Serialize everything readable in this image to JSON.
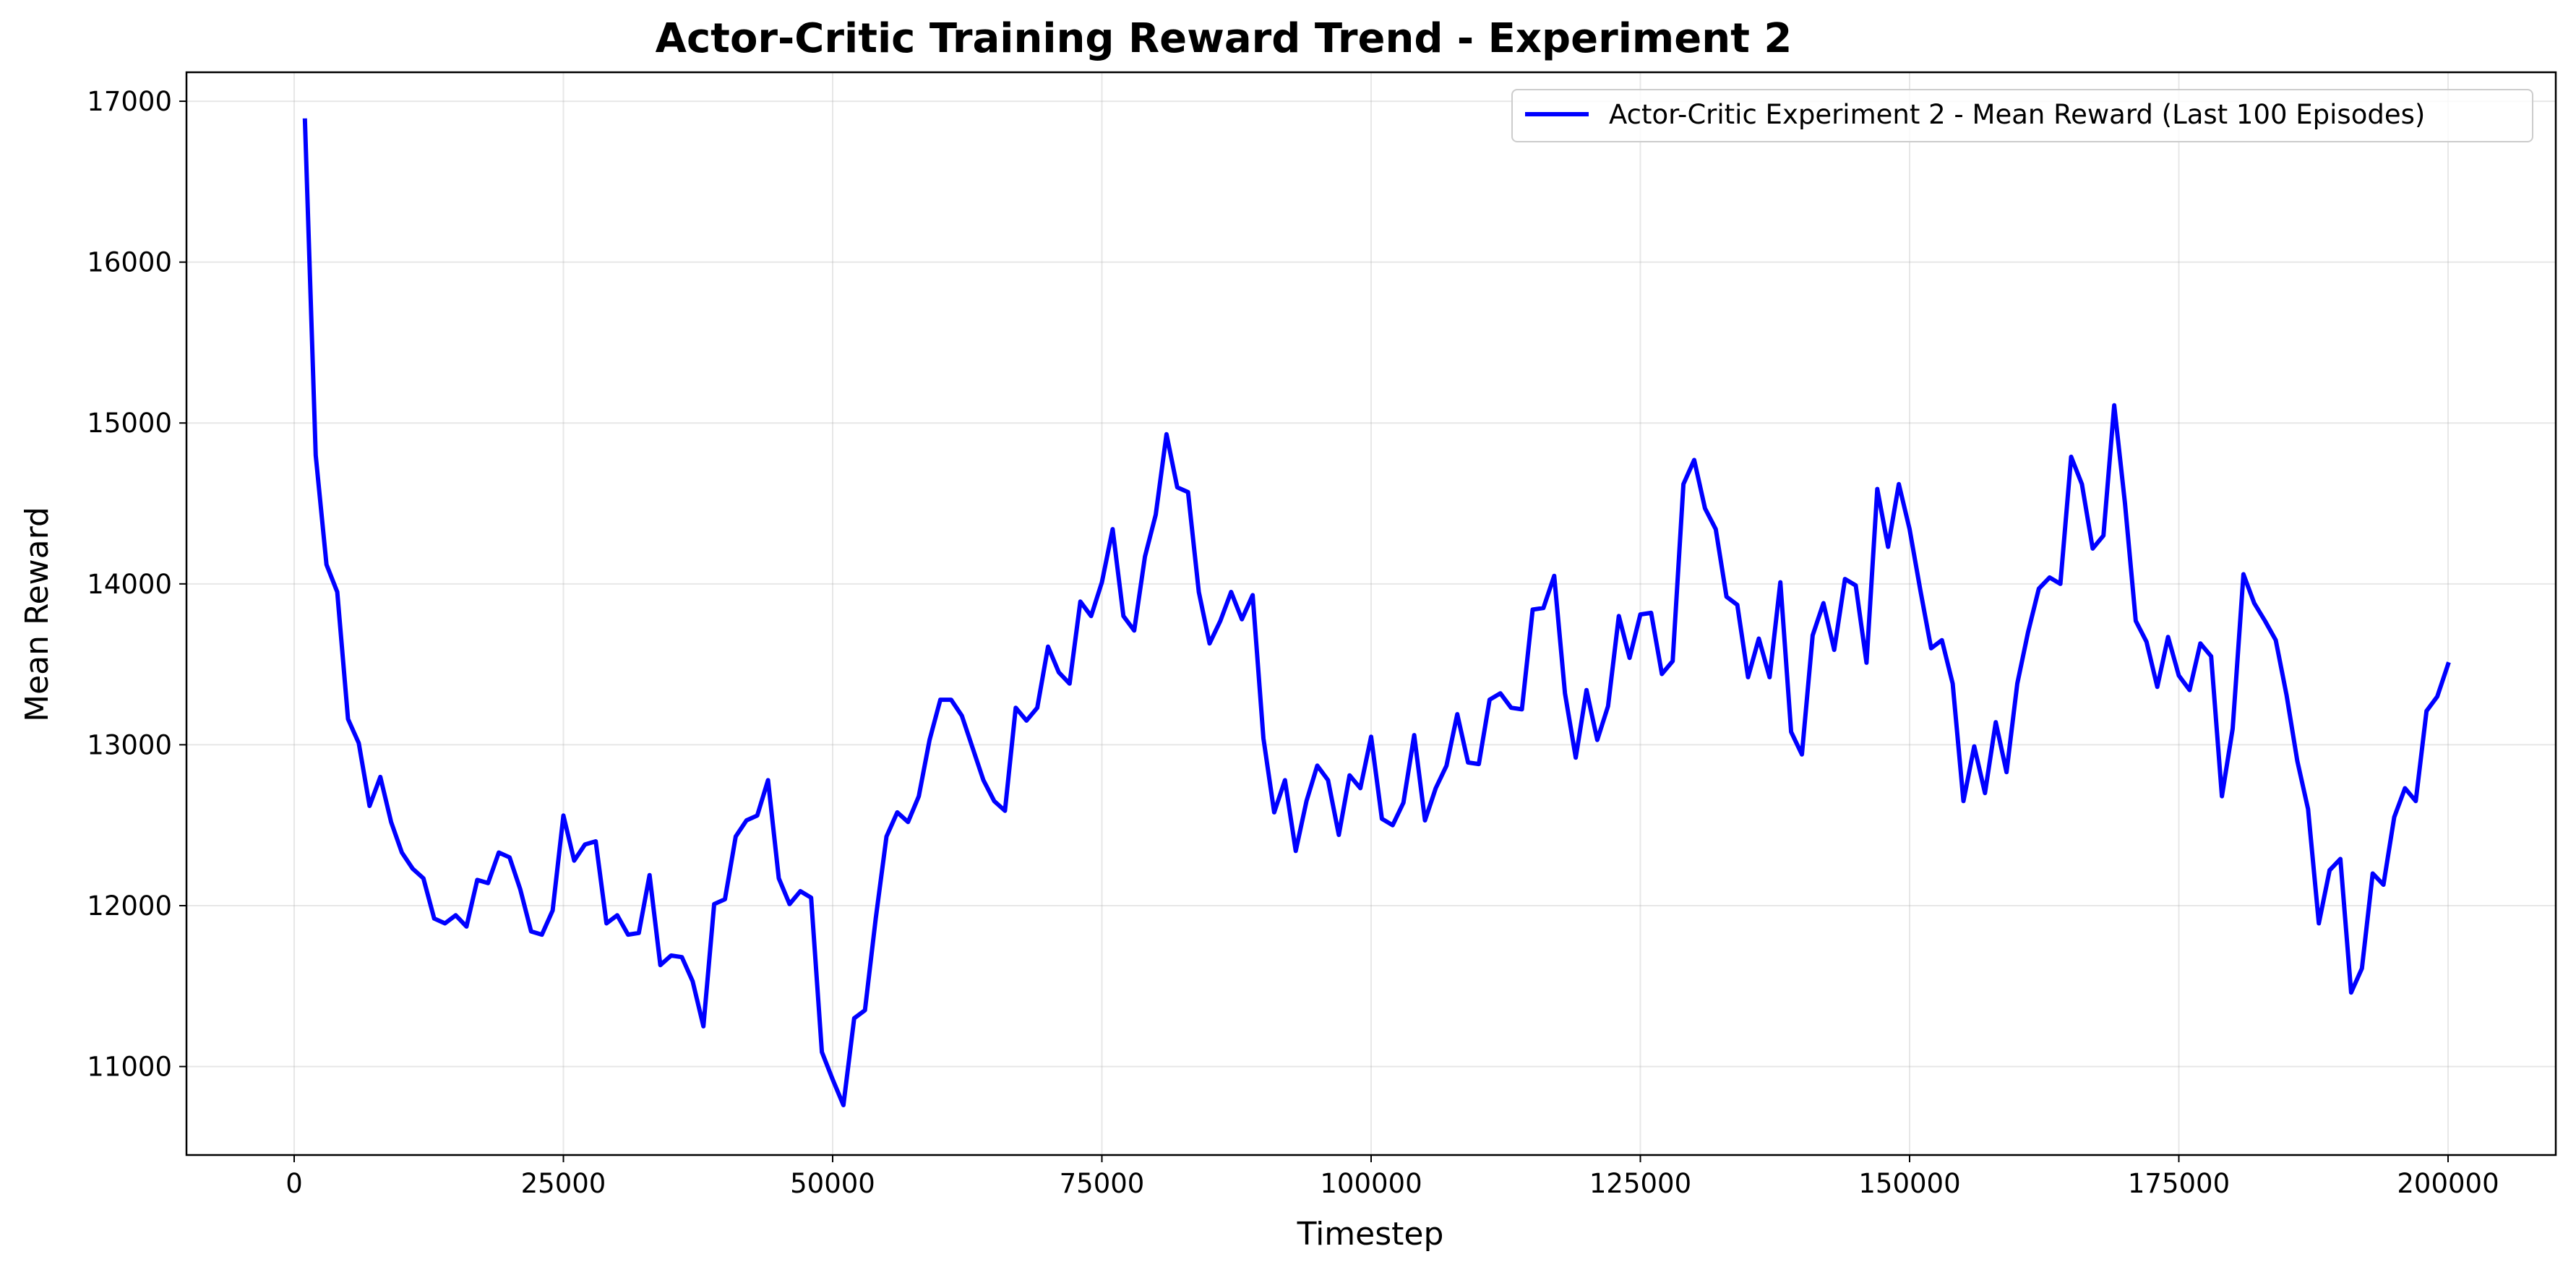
{
  "chart_data": {
    "type": "line",
    "title": "Actor-Critic Training Reward Trend - Experiment 2",
    "xlabel": "Timestep",
    "ylabel": "Mean Reward",
    "xlim": [
      -10000,
      210000
    ],
    "ylim": [
      10450,
      17180
    ],
    "xticks": [
      0,
      25000,
      50000,
      75000,
      100000,
      125000,
      150000,
      175000,
      200000
    ],
    "xtick_labels": [
      "0",
      "25000",
      "50000",
      "75000",
      "100000",
      "125000",
      "150000",
      "175000",
      "200000"
    ],
    "yticks": [
      11000,
      12000,
      13000,
      14000,
      15000,
      16000,
      17000
    ],
    "ytick_labels": [
      "11000",
      "12000",
      "13000",
      "14000",
      "15000",
      "16000",
      "17000"
    ],
    "grid": true,
    "legend_position": "top-right",
    "series": [
      {
        "name": "Actor-Critic Experiment 2 - Mean Reward (Last 100 Episodes)",
        "color": "#0000ff",
        "x": [
          1000,
          2000,
          3000,
          4000,
          5000,
          6000,
          7000,
          8000,
          9000,
          10000,
          11000,
          12000,
          13000,
          14000,
          15000,
          16000,
          17000,
          18000,
          19000,
          20000,
          21000,
          22000,
          23000,
          24000,
          25000,
          26000,
          27000,
          28000,
          29000,
          30000,
          31000,
          32000,
          33000,
          34000,
          35000,
          36000,
          37000,
          38000,
          39000,
          40000,
          41000,
          42000,
          43000,
          44000,
          45000,
          46000,
          47000,
          48000,
          49000,
          50000,
          51000,
          52000,
          53000,
          54000,
          55000,
          56000,
          57000,
          58000,
          59000,
          60000,
          61000,
          62000,
          63000,
          64000,
          65000,
          66000,
          67000,
          68000,
          69000,
          70000,
          71000,
          72000,
          73000,
          74000,
          75000,
          76000,
          77000,
          78000,
          79000,
          80000,
          81000,
          82000,
          83000,
          84000,
          85000,
          86000,
          87000,
          88000,
          89000,
          90000,
          91000,
          92000,
          93000,
          94000,
          95000,
          96000,
          97000,
          98000,
          99000,
          100000,
          101000,
          102000,
          103000,
          104000,
          105000,
          106000,
          107000,
          108000,
          109000,
          110000,
          111000,
          112000,
          113000,
          114000,
          115000,
          116000,
          117000,
          118000,
          119000,
          120000,
          121000,
          122000,
          123000,
          124000,
          125000,
          126000,
          127000,
          128000,
          129000,
          130000,
          131000,
          132000,
          133000,
          134000,
          135000,
          136000,
          137000,
          138000,
          139000,
          140000,
          141000,
          142000,
          143000,
          144000,
          145000,
          146000,
          147000,
          148000,
          149000,
          150000,
          151000,
          152000,
          153000,
          154000,
          155000,
          156000,
          157000,
          158000,
          159000,
          160000,
          161000,
          162000,
          163000,
          164000,
          165000,
          166000,
          167000,
          168000,
          169000,
          170000,
          171000,
          172000,
          173000,
          174000,
          175000,
          176000,
          177000,
          178000,
          179000,
          180000,
          181000,
          182000,
          183000,
          184000,
          185000,
          186000,
          187000,
          188000,
          189000,
          190000,
          191000,
          192000,
          193000,
          194000,
          195000,
          196000,
          197000,
          198000,
          199000,
          200000
        ],
        "y": [
          16880,
          14800,
          14120,
          13950,
          13160,
          13010,
          12620,
          12800,
          12520,
          12330,
          12230,
          12170,
          11920,
          11890,
          11940,
          11870,
          12160,
          12140,
          12330,
          12300,
          12100,
          11840,
          11820,
          11970,
          12560,
          12280,
          12380,
          12400,
          11890,
          11940,
          11820,
          11830,
          12190,
          11630,
          11690,
          11680,
          11530,
          11250,
          12010,
          12040,
          12430,
          12530,
          12560,
          12780,
          12170,
          12010,
          12090,
          12050,
          11090,
          10920,
          10760,
          11300,
          11350,
          11920,
          12430,
          12580,
          12520,
          12680,
          13030,
          13280,
          13280,
          13180,
          12980,
          12780,
          12650,
          12590,
          13230,
          13150,
          13230,
          13610,
          13450,
          13380,
          13890,
          13800,
          14010,
          14340,
          13800,
          13710,
          14170,
          14430,
          14930,
          14600,
          14570,
          13950,
          13630,
          13770,
          13950,
          13780,
          13930,
          13040,
          12580,
          12780,
          12340,
          12650,
          12870,
          12780,
          12440,
          12810,
          12730,
          13050,
          12540,
          12500,
          12640,
          13060,
          12530,
          12730,
          12870,
          13190,
          12890,
          12880,
          13280,
          13320,
          13230,
          13220,
          13840,
          13850,
          14050,
          13320,
          12920,
          13340,
          13030,
          13240,
          13800,
          13540,
          13810,
          13820,
          13440,
          13520,
          14620,
          14770,
          14470,
          14340,
          13920,
          13870,
          13420,
          13660,
          13420,
          14010,
          13080,
          12940,
          13680,
          13880,
          13590,
          14030,
          13990,
          13510,
          14590,
          14230,
          14620,
          14340,
          13960,
          13600,
          13650,
          13380,
          12650,
          12990,
          12700,
          13140,
          12830,
          13380,
          13700,
          13970,
          14040,
          14000,
          14790,
          14620,
          14220,
          14300,
          15110,
          14500,
          13770,
          13640,
          13360,
          13670,
          13430,
          13340,
          13630,
          13550,
          12680,
          13100,
          14060,
          13880,
          13770,
          13650,
          13310,
          12900,
          12600,
          11890,
          12220,
          12290,
          11460,
          11610,
          12200,
          12130,
          12550,
          12730,
          12650,
          13210,
          13300,
          13500
        ]
      }
    ]
  }
}
